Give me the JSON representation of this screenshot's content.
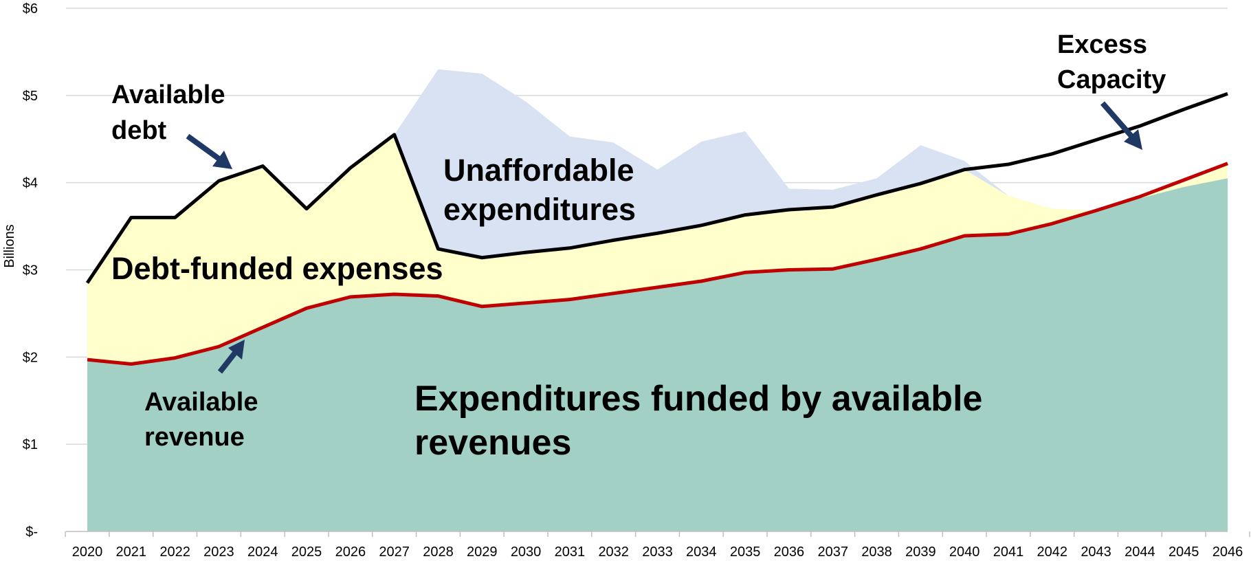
{
  "chart_data": {
    "type": "area",
    "ylabel": "Billions",
    "ylim": [
      0,
      6
    ],
    "y_ticks": [
      {
        "value": 0,
        "label": "$-"
      },
      {
        "value": 1,
        "label": "$1"
      },
      {
        "value": 2,
        "label": "$2"
      },
      {
        "value": 3,
        "label": "$3"
      },
      {
        "value": 4,
        "label": "$4"
      },
      {
        "value": 5,
        "label": "$5"
      },
      {
        "value": 6,
        "label": "$6"
      }
    ],
    "grid": true,
    "x": [
      "2020",
      "2021",
      "2022",
      "2023",
      "2024",
      "2025",
      "2026",
      "2027",
      "2028",
      "2029",
      "2030",
      "2031",
      "2032",
      "2033",
      "2034",
      "2035",
      "2036",
      "2037",
      "2038",
      "2039",
      "2040",
      "2041",
      "2042",
      "2043",
      "2044",
      "2045",
      "2046"
    ],
    "series": [
      {
        "name": "Available debt",
        "style": "line",
        "values": [
          2.85,
          3.6,
          3.6,
          4.02,
          4.19,
          3.7,
          4.17,
          4.55,
          3.24,
          3.14,
          3.2,
          3.25,
          3.34,
          3.42,
          3.51,
          3.63,
          3.69,
          3.72,
          3.86,
          3.99,
          4.15,
          4.21,
          4.33,
          4.49,
          4.65,
          4.84,
          5.02
        ]
      },
      {
        "name": "Available revenue",
        "style": "line",
        "values": [
          1.97,
          1.92,
          1.99,
          2.12,
          2.34,
          2.56,
          2.69,
          2.72,
          2.7,
          2.58,
          2.62,
          2.66,
          2.73,
          2.8,
          2.87,
          2.97,
          3.0,
          3.01,
          3.12,
          3.24,
          3.39,
          3.41,
          3.53,
          3.68,
          3.84,
          4.03,
          4.22
        ]
      },
      {
        "name": "Unaffordable expenditures",
        "style": "area",
        "values": [
          2.85,
          3.6,
          3.6,
          4.02,
          4.19,
          3.7,
          4.17,
          4.55,
          5.3,
          5.25,
          4.93,
          4.53,
          4.46,
          4.15,
          4.47,
          4.59,
          3.93,
          3.92,
          4.05,
          4.43,
          4.25,
          3.85,
          3.7,
          3.68,
          3.84,
          4.03,
          4.22
        ]
      },
      {
        "name": "Debt-funded expenses",
        "style": "area",
        "values": [
          2.85,
          3.6,
          3.6,
          4.02,
          4.19,
          3.7,
          4.17,
          4.55,
          3.24,
          3.14,
          3.2,
          3.25,
          3.34,
          3.42,
          3.51,
          3.63,
          3.69,
          3.72,
          3.86,
          3.99,
          4.15,
          3.85,
          3.7,
          3.68,
          3.84,
          4.0,
          4.2
        ]
      },
      {
        "name": "Expenditures funded by available revenues",
        "style": "area",
        "values": [
          1.97,
          1.92,
          1.99,
          2.12,
          2.34,
          2.56,
          2.69,
          2.72,
          2.7,
          2.58,
          2.62,
          2.66,
          2.73,
          2.8,
          2.87,
          2.97,
          3.0,
          3.01,
          3.12,
          3.24,
          3.39,
          3.41,
          3.53,
          3.68,
          3.82,
          3.95,
          4.05
        ]
      }
    ],
    "annotations": {
      "available_debt": [
        "Available",
        "debt"
      ],
      "excess_capacity": [
        "Excess",
        "Capacity"
      ],
      "unaffordable": [
        "Unaffordable",
        "expenditures"
      ],
      "debt_funded": [
        "Debt-funded expenses"
      ],
      "funded_by_revenue": [
        "Expenditures funded by available",
        "revenues"
      ],
      "available_revenue": [
        "Available",
        "revenue"
      ]
    },
    "colors": {
      "unaffordable": "#d9e2f3",
      "debt_funded": "#ffffcc",
      "revenue_funded": "#a2d0c4",
      "debt_line": "#000000",
      "revenue_line": "#c00000",
      "grid": "#d9d9d9",
      "arrow": "#1f3864"
    }
  }
}
